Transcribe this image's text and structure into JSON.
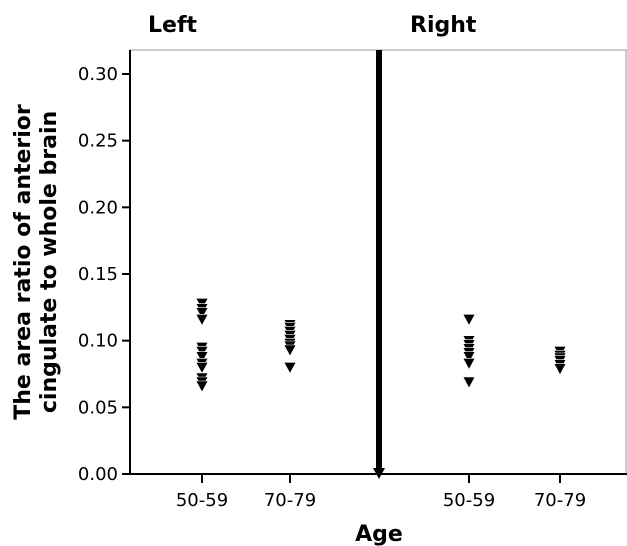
{
  "chart_data": {
    "type": "scatter",
    "marker": "down-triangle",
    "xlabel": "Age",
    "ylabel_lines": [
      "The area ratio of anterior",
      "cingulate to whole brain"
    ],
    "ylim": [
      0,
      0.3
    ],
    "yticks": [
      "0.00",
      "0.05",
      "0.10",
      "0.15",
      "0.20",
      "0.25",
      "0.30"
    ],
    "ytick_values": [
      0,
      0.05,
      0.1,
      0.15,
      0.2,
      0.25,
      0.3
    ],
    "panels": [
      {
        "title": "Left",
        "categories": [
          "50-59",
          "70-79"
        ],
        "groups": [
          {
            "category": "50-59",
            "values": [
              0.128,
              0.124,
              0.121,
              0.116,
              0.095,
              0.092,
              0.088,
              0.083,
              0.08,
              0.072,
              0.069,
              0.066
            ]
          },
          {
            "category": "70-79",
            "values": [
              0.112,
              0.11,
              0.107,
              0.104,
              0.101,
              0.098,
              0.096,
              0.093,
              0.08
            ]
          }
        ]
      },
      {
        "title": "Right",
        "categories": [
          "50-59",
          "70-79"
        ],
        "groups": [
          {
            "category": "50-59",
            "values": [
              0.116,
              0.1,
              0.097,
              0.094,
              0.091,
              0.088,
              0.083,
              0.069
            ]
          },
          {
            "category": "70-79",
            "values": [
              0.092,
              0.089,
              0.087,
              0.085,
              0.082,
              0.079
            ]
          }
        ]
      }
    ],
    "colors": {
      "marker": "#000000",
      "axis": "#000000",
      "frame": "#999999"
    }
  }
}
